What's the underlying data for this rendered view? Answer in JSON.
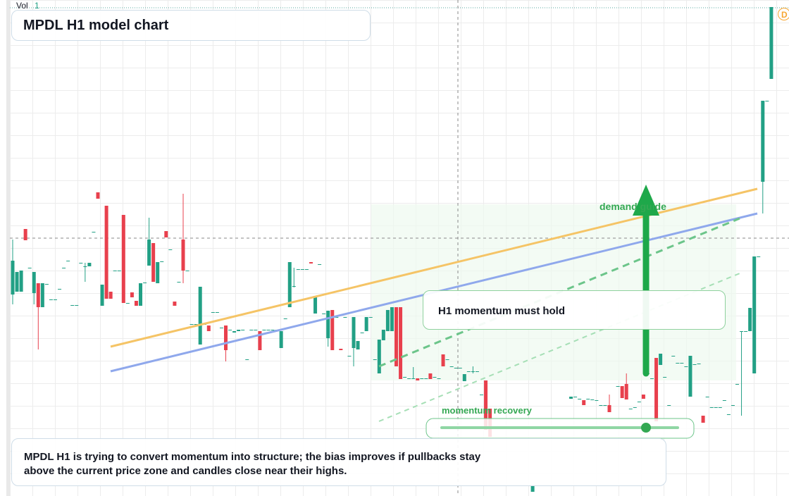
{
  "chart_data": {
    "type": "candlestick",
    "title": "MPDL H1 model chart",
    "vol_label": "Vol",
    "vol_value": "1",
    "badge": "D",
    "annotations": {
      "demand": "demand guide",
      "callout": "H1 momentum must hold",
      "recovery": "momentum recovery"
    },
    "note": "MPDL H1 is trying to convert momentum into structure; the bias improves if pullbacks stay above the current price zone and candles close near their highs.",
    "up_color": "#22a085",
    "down_color": "#e8404d",
    "ylim": [
      0,
      704
    ],
    "ohlc": [
      [
        286,
        364,
        272,
        334
      ],
      [
        290,
        318,
        290,
        318
      ],
      [
        290,
        320,
        290,
        320
      ],
      [
        379,
        379,
        363,
        363
      ],
      [
        324,
        324,
        324,
        324
      ],
      [
        288,
        318,
        272,
        318
      ],
      [
        302,
        302,
        208,
        268
      ],
      [
        268,
        302,
        268,
        302
      ],
      [
        301,
        301,
        301,
        301
      ],
      [
        279,
        279,
        279,
        279
      ],
      [
        279,
        279,
        279,
        279
      ],
      [
        294,
        294,
        294,
        294
      ],
      [
        324,
        324,
        324,
        324
      ],
      [
        334,
        334,
        334,
        334
      ],
      [
        271,
        271,
        271,
        271
      ],
      [
        271,
        271,
        271,
        271
      ],
      [
        331,
        331,
        331,
        331
      ],
      [
        326,
        331,
        304,
        326
      ],
      [
        326,
        331,
        326,
        331
      ],
      [
        375,
        375,
        375,
        375
      ],
      [
        431,
        431,
        422,
        422
      ],
      [
        270,
        300,
        270,
        300
      ],
      [
        412,
        412,
        280,
        280
      ],
      [
        290,
        290,
        280,
        280
      ],
      [
        320,
        320,
        320,
        320
      ],
      [
        320,
        320,
        320,
        320
      ],
      [
        399,
        399,
        274,
        274
      ],
      [
        274,
        274,
        274,
        274
      ],
      [
        289,
        289,
        282,
        282
      ],
      [
        277,
        277,
        270,
        270
      ],
      [
        270,
        302,
        270,
        302
      ],
      [
        303,
        303,
        303,
        303
      ],
      [
        327,
        395,
        327,
        364
      ],
      [
        359,
        359,
        304,
        304
      ],
      [
        302,
        332,
        302,
        332
      ],
      [
        333,
        333,
        333,
        333
      ],
      [
        376,
        376,
        367,
        367
      ],
      [
        350,
        350,
        350,
        350
      ],
      [
        276,
        276,
        270,
        270
      ],
      [
        304,
        304,
        304,
        304
      ],
      [
        364,
        429,
        302,
        320
      ],
      [
        320,
        320,
        320,
        320
      ],
      [
        244,
        244,
        244,
        244
      ],
      [
        244,
        244,
        244,
        244
      ],
      [
        215,
        297,
        215,
        297
      ],
      [
        244,
        244,
        244,
        244
      ],
      [
        242,
        242,
        234,
        234
      ],
      [
        261,
        261,
        261,
        261
      ],
      [
        261,
        261,
        261,
        261
      ],
      [
        239,
        239,
        239,
        239
      ],
      [
        242,
        242,
        191,
        207
      ],
      [
        236,
        236,
        236,
        236
      ],
      [
        232,
        234,
        232,
        234
      ],
      [
        234,
        236,
        234,
        236
      ],
      [
        236,
        236,
        236,
        236
      ],
      [
        194,
        194,
        194,
        194
      ],
      [
        236,
        236,
        236,
        236
      ],
      [
        236,
        236,
        236,
        236
      ],
      [
        234,
        234,
        207,
        207
      ],
      [
        236,
        236,
        236,
        236
      ],
      [
        236,
        236,
        236,
        236
      ],
      [
        236,
        236,
        236,
        236
      ],
      [
        236,
        236,
        236,
        236
      ],
      [
        210,
        234,
        210,
        234
      ],
      [
        252,
        252,
        252,
        252
      ],
      [
        268,
        332,
        268,
        332
      ],
      [
        298,
        324,
        296,
        298
      ],
      [
        322,
        322,
        322,
        322
      ],
      [
        322,
        322,
        322,
        322
      ],
      [
        322,
        322,
        322,
        322
      ],
      [
        332,
        332,
        330,
        330
      ],
      [
        259,
        284,
        259,
        284
      ],
      [
        329,
        329,
        329,
        329
      ],
      [
        259,
        259,
        259,
        259
      ],
      [
        224,
        263,
        212,
        263
      ],
      [
        264,
        264,
        207,
        207
      ],
      [
        254,
        254,
        254,
        254
      ],
      [
        209,
        209,
        207,
        207
      ],
      [
        254,
        254,
        254,
        254
      ],
      [
        199,
        199,
        199,
        199
      ],
      [
        210,
        254,
        184,
        254
      ],
      [
        208,
        220,
        208,
        220
      ],
      [
        232,
        232,
        232,
        232
      ],
      [
        234,
        254,
        234,
        254
      ],
      [
        254,
        254,
        254,
        254
      ],
      [
        194,
        194,
        194,
        194
      ],
      [
        174,
        222,
        174,
        222
      ],
      [
        221,
        236,
        221,
        236
      ],
      [
        234,
        264,
        234,
        264
      ],
      [
        234,
        268,
        234,
        268
      ],
      [
        268,
        268,
        184,
        184
      ],
      [
        268,
        268,
        166,
        166
      ],
      [
        169,
        169,
        169,
        169
      ],
      [
        167,
        167,
        167,
        167
      ],
      [
        167,
        183,
        166,
        167
      ],
      [
        167,
        167,
        164,
        164
      ],
      [
        167,
        167,
        167,
        167
      ],
      [
        167,
        167,
        167,
        167
      ],
      [
        174,
        174,
        166,
        166
      ],
      [
        169,
        169,
        169,
        169
      ],
      [
        167,
        167,
        167,
        167
      ],
      [
        201,
        201,
        184,
        184
      ],
      [
        194,
        194,
        194,
        194
      ],
      [
        184,
        184,
        184,
        184
      ],
      [
        182,
        182,
        182,
        182
      ],
      [
        182,
        182,
        182,
        182
      ],
      [
        163,
        173,
        163,
        173
      ],
      [
        177,
        177,
        177,
        177
      ],
      [
        177,
        184,
        174,
        177
      ],
      [
        177,
        177,
        177,
        177
      ],
      [
        144,
        144,
        144,
        144
      ],
      [
        164,
        164,
        94,
        94
      ],
      [
        124,
        124,
        84,
        84
      ],
      null,
      null,
      null,
      null,
      null,
      null,
      null,
      null,
      null,
      [
        6,
        14,
        6,
        14
      ],
      null,
      null,
      null,
      null,
      null,
      null,
      null,
      null,
      [
        138,
        141,
        138,
        141
      ],
      [
        141,
        141,
        141,
        141
      ],
      [
        138,
        138,
        138,
        138
      ],
      [
        136,
        136,
        129,
        129
      ],
      [
        138,
        138,
        138,
        138
      ],
      [
        137,
        137,
        137,
        137
      ],
      [
        136,
        136,
        136,
        136
      ],
      [
        129,
        129,
        129,
        129
      ],
      [
        129,
        129,
        129,
        129
      ],
      [
        129,
        144,
        119,
        119
      ],
      null,
      [
        156,
        156,
        156,
        156
      ],
      [
        156,
        156,
        139,
        139
      ],
      [
        159,
        174,
        137,
        137
      ],
      [
        124,
        124,
        124,
        124
      ],
      [
        126,
        126,
        126,
        126
      ],
      [
        134,
        134,
        134,
        134
      ],
      [
        144,
        144,
        138,
        138
      ],
      [
        174,
        174,
        174,
        174
      ],
      [
        167,
        167,
        167,
        167
      ],
      [
        196,
        196,
        106,
        106
      ],
      [
        186,
        202,
        186,
        202
      ],
      [
        169,
        169,
        169,
        169
      ],
      [
        129,
        129,
        129,
        129
      ],
      [
        199,
        199,
        199,
        199
      ],
      [
        189,
        189,
        189,
        189
      ],
      [
        189,
        189,
        189,
        189
      ],
      [
        184,
        184,
        184,
        184
      ],
      [
        141,
        199,
        141,
        199
      ],
      [
        187,
        187,
        187,
        187
      ],
      [
        188,
        188,
        188,
        188
      ],
      [
        114,
        114,
        104,
        104
      ],
      [
        141,
        141,
        141,
        141
      ],
      [
        126,
        126,
        126,
        126
      ],
      [
        126,
        126,
        126,
        126
      ],
      [
        126,
        126,
        126,
        126
      ],
      [
        136,
        136,
        136,
        136
      ],
      [
        116,
        116,
        116,
        116
      ],
      [
        129,
        129,
        129,
        129
      ],
      [
        159,
        159,
        159,
        159
      ],
      [
        234,
        234,
        114,
        234
      ],
      [
        234,
        234,
        234,
        234
      ],
      [
        234,
        267,
        234,
        267
      ],
      [
        174,
        340,
        174,
        340
      ],
      [
        340,
        340,
        340,
        340
      ],
      [
        446,
        561,
        401,
        561
      ],
      [
        561,
        561,
        561,
        561
      ],
      [
        592,
        694,
        592,
        694
      ]
    ]
  }
}
